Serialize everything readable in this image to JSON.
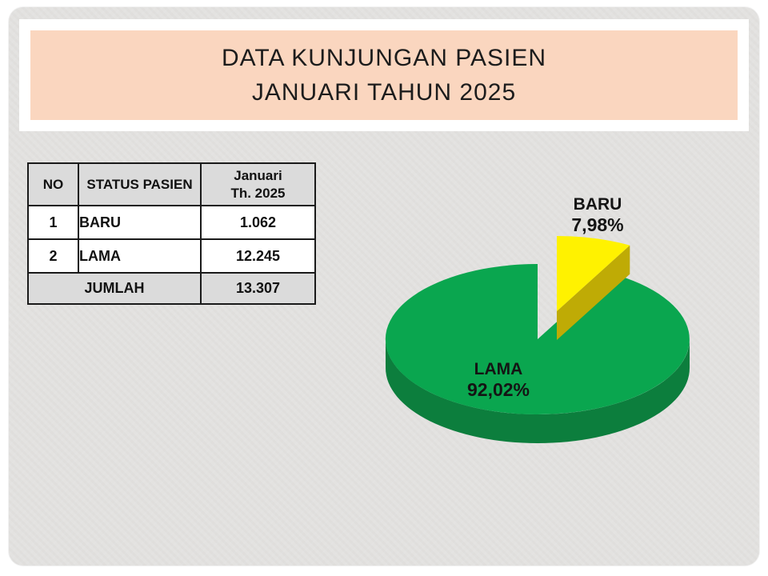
{
  "slide": {
    "title_lines": [
      "DATA KUNJUNGAN PASIEN",
      "JANUARI TAHUN 2025"
    ]
  },
  "table": {
    "headers": {
      "no": "NO",
      "status": "STATUS PASIEN",
      "period_line1": "Januari",
      "period_line2": "Th. 2025"
    },
    "rows": [
      {
        "no": "1",
        "status": "BARU",
        "value": "1.062"
      },
      {
        "no": "2",
        "status": "LAMA",
        "value": "12.245"
      }
    ],
    "footer": {
      "label": "JUMLAH",
      "value": "13.307"
    }
  },
  "chart_data": {
    "type": "pie",
    "title": "Data Kunjungan Pasien Januari Tahun 2025",
    "labels": [
      "BARU",
      "LAMA"
    ],
    "values": [
      7.98,
      92.02
    ],
    "display_percents": [
      "7,98%",
      "92,02%"
    ],
    "counts": [
      1062,
      12245
    ],
    "total": 13307,
    "colors": [
      "#fff200",
      "#0aa64f"
    ],
    "side_colors": [
      "#bfab05",
      "#0c7e3d"
    ],
    "start_angle_deg": 90,
    "direction": "clockwise",
    "effect_3d": true,
    "exploded_slice": "BARU",
    "legend_position": "none"
  },
  "colors": {
    "slide_background": "#e3e2e0",
    "title_box_bg": "#fad6bf",
    "title_frame_bg": "#ffffff",
    "table_header_bg": "#dbdbdb",
    "table_border": "#1a1a1a",
    "text": "#141414"
  }
}
